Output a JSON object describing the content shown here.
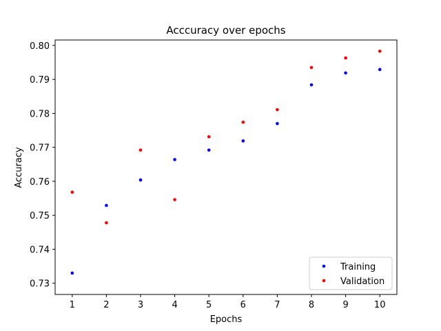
{
  "chart_data": {
    "type": "scatter",
    "title": "Acccuracy over epochs",
    "xlabel": "Epochs",
    "ylabel": "Accuracy",
    "x": [
      1,
      2,
      3,
      4,
      5,
      6,
      7,
      8,
      9,
      10
    ],
    "xticks": [
      1,
      2,
      3,
      4,
      5,
      6,
      7,
      8,
      9,
      10
    ],
    "yticks": [
      "0.73",
      "0.74",
      "0.75",
      "0.76",
      "0.77",
      "0.78",
      "0.79",
      "0.80"
    ],
    "xlim": [
      0.5,
      10.5
    ],
    "ylim": [
      0.7267,
      0.8016
    ],
    "series": [
      {
        "name": "Training",
        "color": "#0000ff",
        "values": [
          0.733,
          0.7529,
          0.7604,
          0.7664,
          0.7692,
          0.7719,
          0.777,
          0.7884,
          0.7919,
          0.7929
        ]
      },
      {
        "name": "Validation",
        "color": "#ff0000",
        "values": [
          0.7568,
          0.7478,
          0.7692,
          0.7546,
          0.7731,
          0.7774,
          0.7811,
          0.7935,
          0.7963,
          0.7983
        ]
      }
    ],
    "legend": "lower-right",
    "grid": false
  }
}
